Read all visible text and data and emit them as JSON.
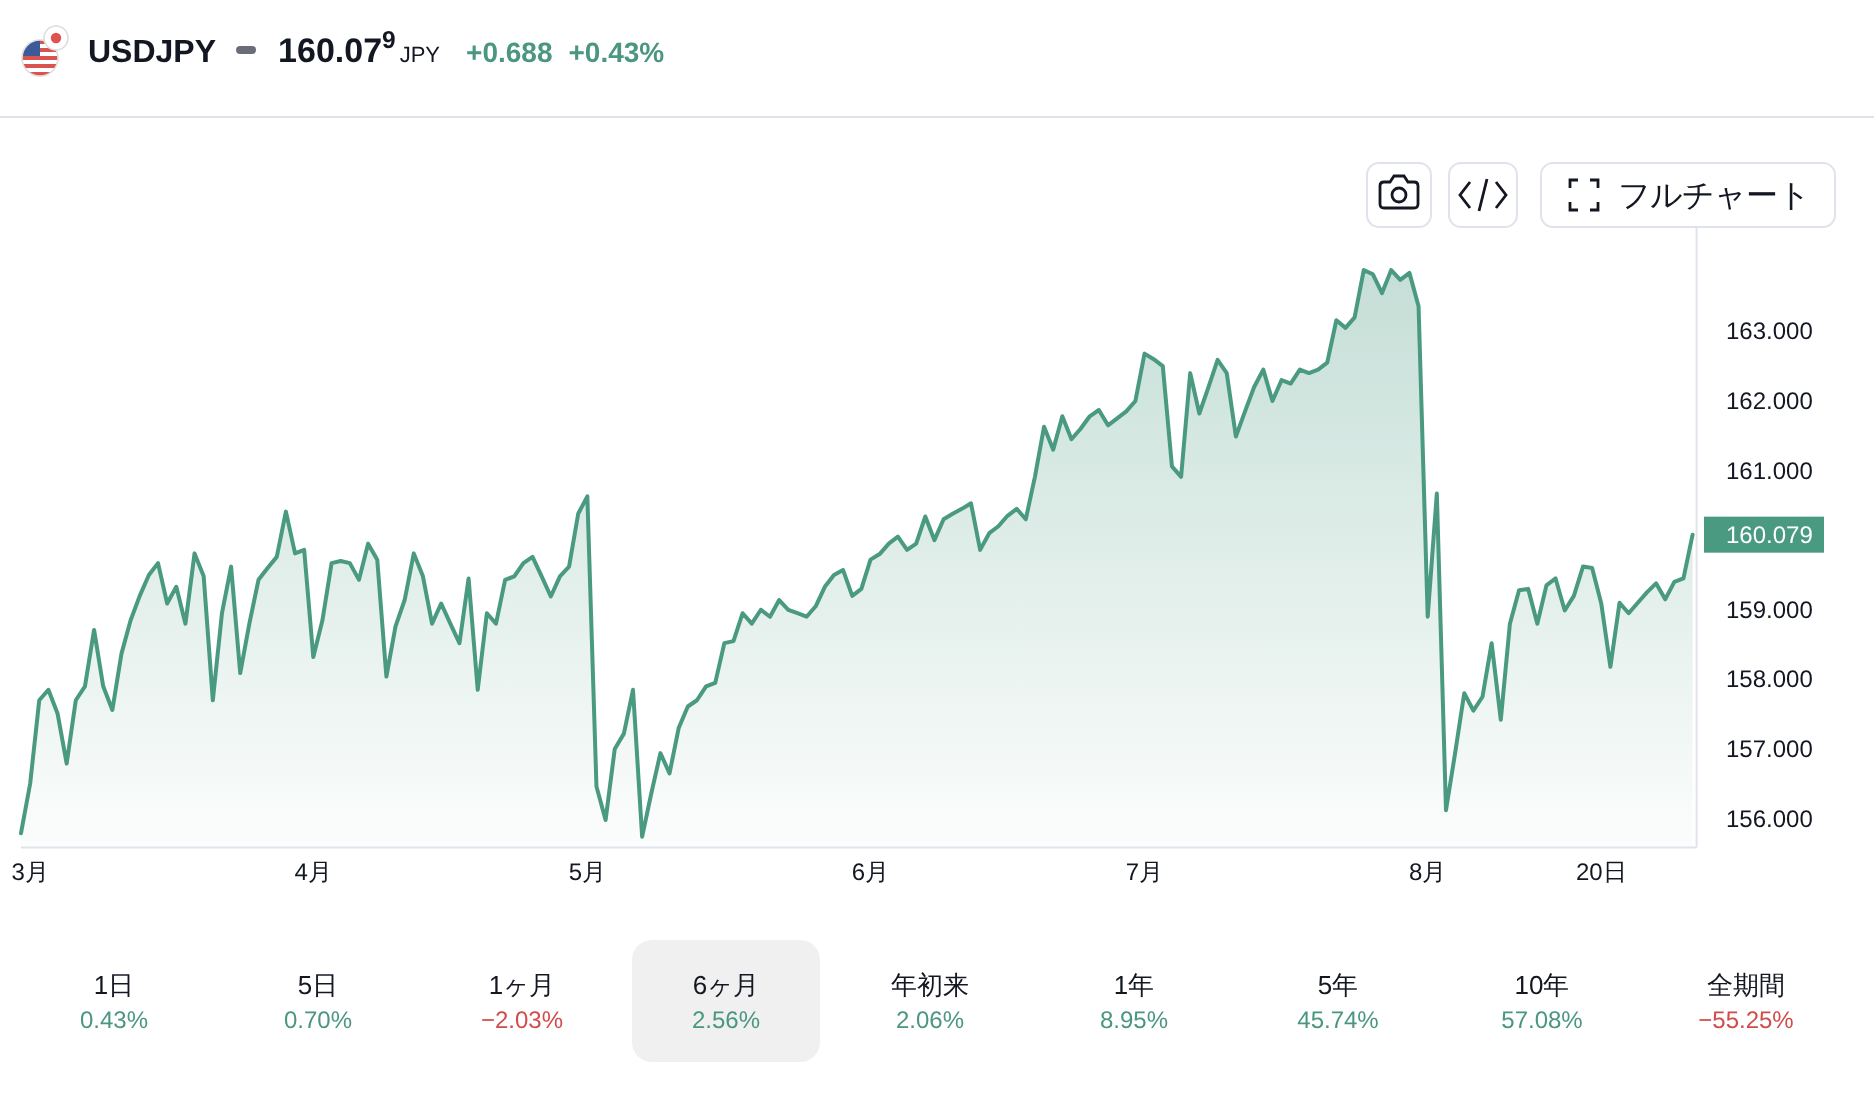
{
  "chart_data": {
    "type": "area",
    "title": "USDJPY",
    "color": "#4a9981",
    "x": [
      "--02-28",
      "--03-01",
      "--03-02",
      "--03-03",
      "--03-04",
      "--03-05",
      "--03-06",
      "--03-07",
      "--03-08",
      "--03-09",
      "--03-10",
      "--03-11",
      "--03-12",
      "--03-13",
      "--03-14",
      "--03-15",
      "--03-16",
      "--03-17",
      "--03-18",
      "--03-19",
      "--03-20",
      "--03-21",
      "--03-22",
      "--03-23",
      "--03-24",
      "--03-25",
      "--03-26",
      "--03-27",
      "--03-28",
      "--03-29",
      "--03-30",
      "--03-31",
      "--04-01",
      "--04-02",
      "--04-03",
      "--04-04",
      "--04-05",
      "--04-06",
      "--04-07",
      "--04-08",
      "--04-09",
      "--04-10",
      "--04-11",
      "--04-12",
      "--04-13",
      "--04-14",
      "--04-15",
      "--04-16",
      "--04-17",
      "--04-18",
      "--04-19",
      "--04-20",
      "--04-21",
      "--04-22",
      "--04-23",
      "--04-24",
      "--04-25",
      "--04-26",
      "--04-27",
      "--04-28",
      "--04-29",
      "--04-30",
      "--05-01",
      "--05-02",
      "--05-03",
      "--05-04",
      "--05-05",
      "--05-06",
      "--05-07",
      "--05-08",
      "--05-09",
      "--05-10",
      "--05-11",
      "--05-12",
      "--05-13",
      "--05-14",
      "--05-15",
      "--05-16",
      "--05-17",
      "--05-18",
      "--05-19",
      "--05-20",
      "--05-21",
      "--05-22",
      "--05-23",
      "--05-24",
      "--05-25",
      "--05-26",
      "--05-27",
      "--05-28",
      "--05-29",
      "--05-30",
      "--05-31",
      "--06-01",
      "--06-02",
      "--06-03",
      "--06-04",
      "--06-05",
      "--06-06",
      "--06-07",
      "--06-08",
      "--06-09",
      "--06-10",
      "--06-11",
      "--06-12",
      "--06-13",
      "--06-14",
      "--06-15",
      "--06-16",
      "--06-17",
      "--06-18",
      "--06-19",
      "--06-20",
      "--06-21",
      "--06-22",
      "--06-23",
      "--06-24",
      "--06-25",
      "--06-26",
      "--06-27",
      "--06-28",
      "--06-29",
      "--06-30",
      "--07-01",
      "--07-02",
      "--07-03",
      "--07-04",
      "--07-05",
      "--07-06",
      "--07-07",
      "--07-08",
      "--07-09",
      "--07-10",
      "--07-11",
      "--07-12",
      "--07-13",
      "--07-14",
      "--07-15",
      "--07-16",
      "--07-17",
      "--07-18",
      "--07-19",
      "--07-20",
      "--07-21",
      "--07-22",
      "--07-23",
      "--07-24",
      "--07-25",
      "--07-26",
      "--07-27",
      "--07-28",
      "--07-29",
      "--07-30",
      "--07-31",
      "--08-01",
      "--08-02",
      "--08-03",
      "--08-04",
      "--08-05",
      "--08-06",
      "--08-07",
      "--08-08",
      "--08-09",
      "--08-10",
      "--08-11",
      "--08-12",
      "--08-13",
      "--08-14",
      "--08-15",
      "--08-16",
      "--08-17",
      "--08-18",
      "--08-19",
      "--08-20",
      "--08-21",
      "--08-22",
      "--08-23",
      "--08-24",
      "--08-25",
      "--08-26",
      "--08-27",
      "--08-28",
      "--08-29",
      "--08-30"
    ],
    "values": [
      155.79,
      156.5,
      157.7,
      157.85,
      157.51,
      156.79,
      157.7,
      157.9,
      158.71,
      157.9,
      157.56,
      158.37,
      158.85,
      159.2,
      159.5,
      159.67,
      159.09,
      159.33,
      158.8,
      159.81,
      159.48,
      157.7,
      158.95,
      159.62,
      158.09,
      158.8,
      159.43,
      159.6,
      159.76,
      160.41,
      159.81,
      159.86,
      158.32,
      158.85,
      159.67,
      159.7,
      159.67,
      159.43,
      159.95,
      159.72,
      158.04,
      158.76,
      159.14,
      159.81,
      159.48,
      158.8,
      159.09,
      158.8,
      158.52,
      159.45,
      157.85,
      158.95,
      158.8,
      159.43,
      159.48,
      159.67,
      159.76,
      159.48,
      159.19,
      159.48,
      159.62,
      160.38,
      160.63,
      156.46,
      155.98,
      157.0,
      157.22,
      157.85,
      155.74,
      156.36,
      156.94,
      156.65,
      157.3,
      157.61,
      157.7,
      157.9,
      157.95,
      158.52,
      158.55,
      158.95,
      158.8,
      159.0,
      158.9,
      159.14,
      159.0,
      158.95,
      158.9,
      159.05,
      159.33,
      159.5,
      159.57,
      159.2,
      159.3,
      159.72,
      159.8,
      159.95,
      160.05,
      159.86,
      159.95,
      160.34,
      160.0,
      160.3,
      160.38,
      160.45,
      160.53,
      159.86,
      160.1,
      160.2,
      160.35,
      160.45,
      160.3,
      160.91,
      161.63,
      161.3,
      161.78,
      161.45,
      161.6,
      161.78,
      161.87,
      161.65,
      161.75,
      161.85,
      162.0,
      162.68,
      162.6,
      162.5,
      161.06,
      160.91,
      162.4,
      161.82,
      162.2,
      162.59,
      162.4,
      161.49,
      161.85,
      162.2,
      162.45,
      162.0,
      162.3,
      162.25,
      162.45,
      162.4,
      162.45,
      162.55,
      163.16,
      163.05,
      163.2,
      163.88,
      163.82,
      163.55,
      163.88,
      163.74,
      163.84,
      163.36,
      158.9,
      160.67,
      156.12,
      156.94,
      157.8,
      157.55,
      157.75,
      158.52,
      157.42,
      158.8,
      159.28,
      159.3,
      158.8,
      159.35,
      159.45,
      158.99,
      159.2,
      159.62,
      159.6,
      159.09,
      158.18,
      159.1,
      158.95,
      159.1,
      159.25,
      159.38,
      159.15,
      159.4,
      159.45,
      160.079
    ],
    "xlim": [
      "--02-28",
      "--08-30"
    ],
    "xticks": [
      {
        "value": "--03-01",
        "label": "3月"
      },
      {
        "value": "--04-01",
        "label": "4月"
      },
      {
        "value": "--05-01",
        "label": "5月"
      },
      {
        "value": "--06-01",
        "label": "6月"
      },
      {
        "value": "--07-01",
        "label": "7月"
      },
      {
        "value": "--08-01",
        "label": "8月"
      },
      {
        "value": "--08-20",
        "label": "20日"
      }
    ],
    "ylim": [
      155.6,
      164.5
    ],
    "yticks": [
      {
        "value": 156,
        "label": "156.000"
      },
      {
        "value": 157,
        "label": "157.000"
      },
      {
        "value": 158,
        "label": "158.000"
      },
      {
        "value": 159,
        "label": "159.000"
      },
      {
        "value": 161,
        "label": "161.000"
      },
      {
        "value": 162,
        "label": "162.000"
      },
      {
        "value": 163,
        "label": "163.000"
      }
    ],
    "annotations": [
      "160.07$^{9}$",
      "JPY",
      "+0.688",
      "+0.43%",
      {
        "text": "160.079",
        "x": "--08-30",
        "y": 160.079
      },
      "フルチャート",
      "1日",
      "0.43%",
      "5日",
      "0.70%",
      "1ヶ月",
      "−2.03%",
      "6ヶ月",
      "2.56%",
      "年初来",
      "2.06%",
      "1年",
      "8.95%",
      "5年",
      "45.74%",
      "10年",
      "57.08%",
      "全期間",
      "−55.25%"
    ]
  }
}
